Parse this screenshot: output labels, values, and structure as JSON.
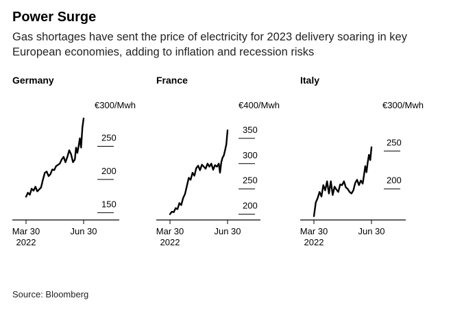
{
  "header": {
    "title": "Power Surge",
    "subtitle": "Gas shortages have sent the price of electricity for 2023 delivery soaring in key European economies, adding to inflation and recession risks"
  },
  "footer": {
    "source": "Source: Bloomberg"
  },
  "colors": {
    "line": "#000000",
    "text": "#000000",
    "background": "#ffffff"
  },
  "chart_data": [
    {
      "type": "line",
      "title": "Germany",
      "unit_label": "€300/Mwh",
      "ylim": [
        140,
        300
      ],
      "yticks": [
        150,
        200,
        250
      ],
      "xtick_labels": [
        "Mar 30\n2022",
        "Jun 30"
      ],
      "xticks_day": [
        0,
        92
      ],
      "grid": false,
      "series": [
        {
          "x": [
            0,
            3,
            6,
            9,
            12,
            15,
            18,
            21,
            24,
            27,
            30,
            33,
            36,
            39,
            42,
            45,
            48,
            51,
            54,
            57,
            60,
            63,
            66,
            69,
            72,
            75,
            78,
            80,
            82,
            84,
            86,
            88,
            90,
            92
          ],
          "y": [
            174,
            180,
            177,
            186,
            183,
            189,
            182,
            185,
            188,
            200,
            210,
            212,
            205,
            208,
            215,
            214,
            220,
            222,
            224,
            230,
            234,
            226,
            234,
            244,
            238,
            226,
            230,
            248,
            240,
            250,
            262,
            248,
            278,
            292
          ]
        }
      ]
    },
    {
      "type": "line",
      "title": "France",
      "unit_label": "€400/Mwh",
      "ylim": [
        190,
        400
      ],
      "yticks": [
        200,
        250,
        300,
        350
      ],
      "xtick_labels": [
        "Mar 30\n2022",
        "Jun 30"
      ],
      "xticks_day": [
        0,
        92
      ],
      "grid": false,
      "series": [
        {
          "x": [
            0,
            3,
            6,
            9,
            12,
            15,
            18,
            21,
            24,
            27,
            30,
            33,
            36,
            39,
            42,
            45,
            48,
            51,
            54,
            57,
            60,
            63,
            66,
            69,
            72,
            75,
            78,
            80,
            82,
            84,
            86,
            88,
            90,
            92
          ],
          "y": [
            200,
            205,
            204,
            212,
            210,
            222,
            218,
            232,
            240,
            256,
            272,
            268,
            282,
            276,
            291,
            296,
            287,
            298,
            294,
            290,
            300,
            294,
            300,
            288,
            297,
            294,
            300,
            282,
            303,
            312,
            316,
            326,
            338,
            366
          ]
        }
      ]
    },
    {
      "type": "line",
      "title": "Italy",
      "unit_label": "€300/Mwh",
      "ylim": [
        160,
        300
      ],
      "yticks": [
        200,
        250
      ],
      "xtick_labels": [
        "Mar 30\n2022",
        "Jun 30"
      ],
      "xticks_day": [
        0,
        92
      ],
      "grid": false,
      "series": [
        {
          "x": [
            0,
            3,
            6,
            9,
            12,
            15,
            18,
            21,
            24,
            27,
            30,
            33,
            36,
            39,
            42,
            45,
            48,
            51,
            54,
            57,
            60,
            63,
            66,
            69,
            72,
            75,
            78,
            80,
            82,
            84,
            86,
            88,
            90,
            92
          ],
          "y": [
            164,
            182,
            188,
            196,
            190,
            205,
            198,
            210,
            194,
            210,
            192,
            203,
            199,
            196,
            206,
            205,
            210,
            202,
            200,
            196,
            194,
            198,
            208,
            212,
            205,
            211,
            207,
            218,
            230,
            222,
            235,
            245,
            238,
            255
          ]
        }
      ]
    }
  ]
}
